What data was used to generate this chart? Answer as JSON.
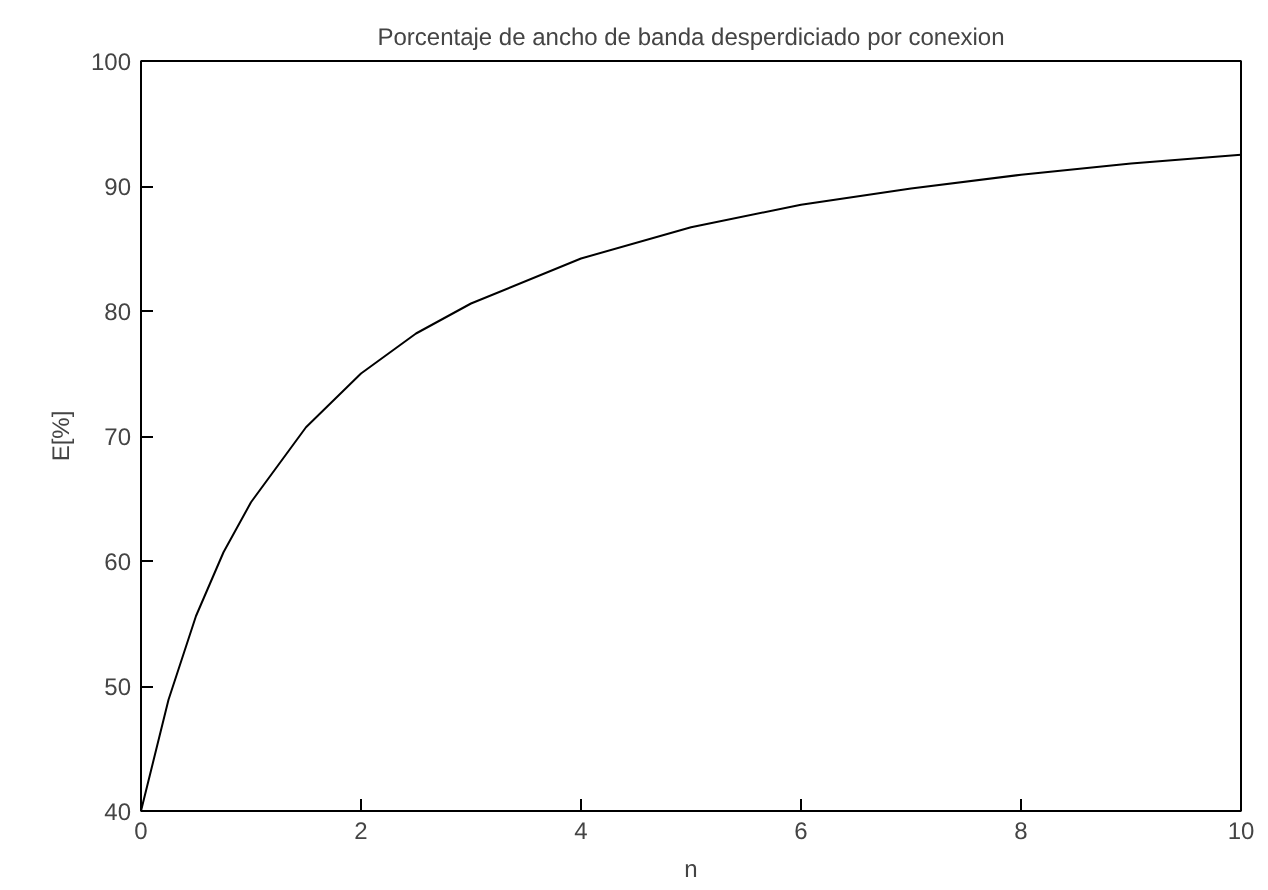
{
  "chart_data": {
    "type": "line",
    "title": "Porcentaje de ancho de banda desperdiciado por conexion",
    "xlabel": "n",
    "ylabel": "E[%]",
    "x": [
      0,
      0.25,
      0.5,
      0.75,
      1,
      1.5,
      2,
      2.5,
      3,
      4,
      5,
      6,
      7,
      8,
      9,
      10
    ],
    "series": [
      {
        "color": "#000000",
        "values": [
          40,
          48.9,
          55.6,
          60.7,
          64.7,
          70.7,
          75,
          78.2,
          80.6,
          84.2,
          86.7,
          88.5,
          89.8,
          90.9,
          91.8,
          92.5
        ]
      }
    ],
    "xlim": [
      0,
      10
    ],
    "ylim": [
      40,
      100
    ],
    "xticks": [
      0,
      2,
      4,
      6,
      8,
      10
    ],
    "yticks": [
      40,
      50,
      60,
      70,
      80,
      90,
      100
    ],
    "grid": false
  }
}
